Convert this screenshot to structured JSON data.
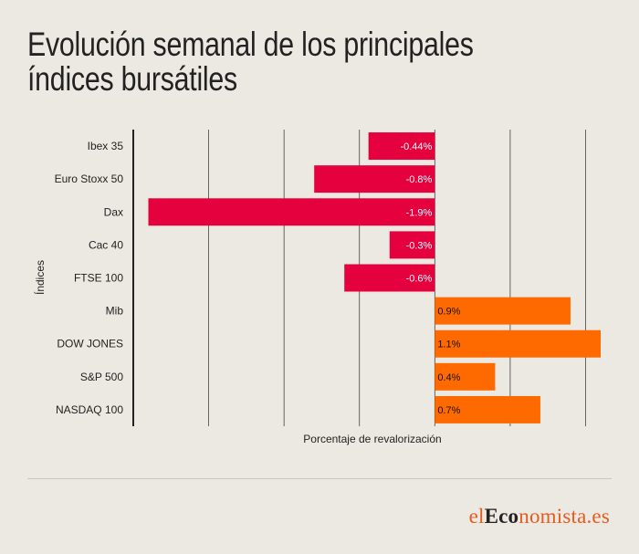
{
  "chart_data": {
    "type": "bar",
    "orientation": "horizontal",
    "title": "Evolución semanal de los principales índices bursátiles",
    "xlabel": "Porcentaje de revalorización",
    "ylabel": "Índices",
    "categories": [
      "Ibex 35",
      "Euro Stoxx 50",
      "Dax",
      "Cac 40",
      "FTSE 100",
      "Mib",
      "DOW JONES",
      "S&P 500",
      "NASDAQ 100"
    ],
    "values": [
      -0.44,
      -0.8,
      -1.9,
      -0.3,
      -0.6,
      0.9,
      1.1,
      0.4,
      0.7
    ],
    "labels": [
      "-0.44%",
      "-0.8%",
      "-1.9%",
      "-0.3%",
      "-0.6%",
      "0.9%",
      "1.1%",
      "0.4%",
      "0.7%"
    ],
    "xlim": [
      -2.0,
      1.1
    ],
    "grid": true,
    "colors": {
      "negative": "#e5003e",
      "positive": "#ff6a00"
    }
  },
  "logo": {
    "part1": "el",
    "part2": "Eco",
    "part3": "nomista.es"
  }
}
